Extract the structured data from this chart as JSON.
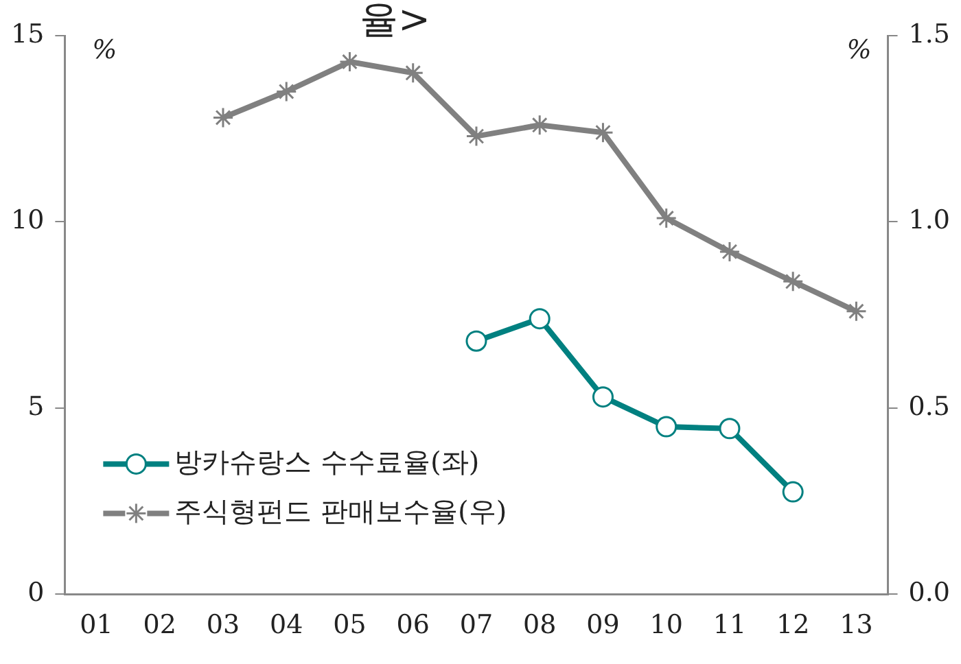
{
  "chart_data": {
    "type": "line",
    "annotations": [
      "율>"
    ],
    "ylabel": "%",
    "y2label": "%",
    "categories": [
      "01",
      "02",
      "03",
      "04",
      "05",
      "06",
      "07",
      "08",
      "09",
      "10",
      "11",
      "12",
      "13"
    ],
    "series": [
      {
        "name": "방카슈랑스 수수료율(좌)",
        "color": "#008080",
        "marker": "circle",
        "values": [
          null,
          null,
          null,
          null,
          null,
          null,
          6.8,
          7.4,
          5.3,
          4.5,
          4.45,
          2.75,
          null
        ]
      },
      {
        "name": "주식형펀드 판매보수율(우)",
        "color": "#808080",
        "marker": "cross",
        "axis": "y2",
        "values": [
          null,
          null,
          1.28,
          1.35,
          1.43,
          1.4,
          1.23,
          1.26,
          1.24,
          1.01,
          0.92,
          0.84,
          0.76
        ]
      }
    ],
    "ylim": [
      0,
      15
    ],
    "yticks": [
      0,
      5,
      10,
      15
    ],
    "y2lim": [
      0,
      1.5
    ],
    "y2ticks": [
      {
        "value": 0,
        "label": "0.0"
      },
      {
        "value": 0.5,
        "label": "0.5"
      },
      {
        "value": 1,
        "label": "1.0"
      },
      {
        "value": 1.5,
        "label": "1.5"
      }
    ],
    "grid": false,
    "legend": "bottom left"
  }
}
